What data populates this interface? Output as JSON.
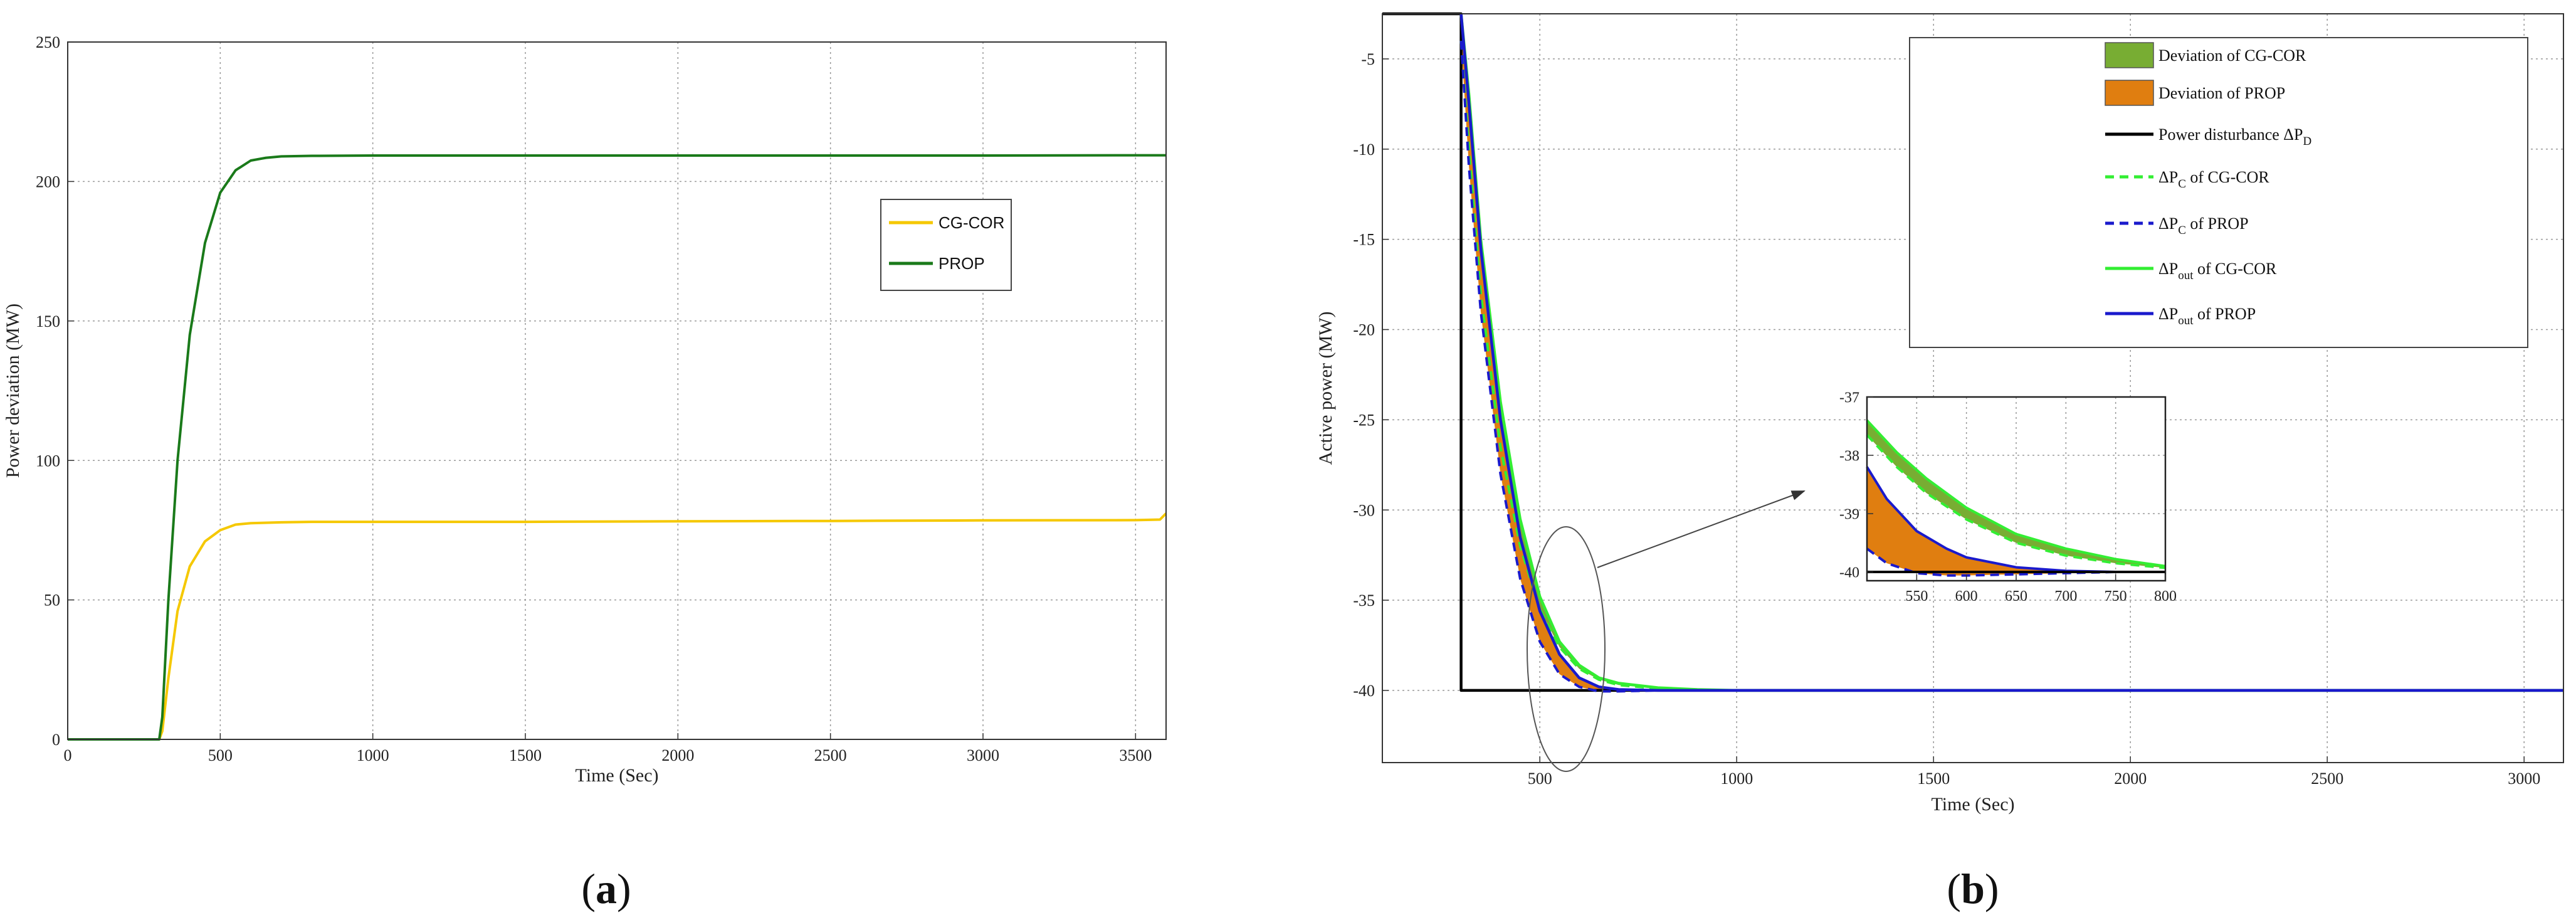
{
  "figure": {
    "panel_a_label": "a",
    "panel_b_label": "b"
  },
  "chart_data": [
    {
      "type": "line",
      "xlabel": "Time (Sec)",
      "ylabel": "Power deviation (MW)",
      "xlim": [
        0,
        3600
      ],
      "ylim": [
        0,
        250
      ],
      "xticks": [
        0,
        500,
        1000,
        1500,
        2000,
        2500,
        3000,
        3500
      ],
      "yticks": [
        0,
        50,
        100,
        150,
        200,
        250
      ],
      "grid": true,
      "legend_position": "right-upper",
      "series": [
        {
          "name": "CG-COR",
          "color": "#f5c800",
          "x": [
            0,
            300,
            310,
            330,
            360,
            400,
            450,
            500,
            550,
            600,
            700,
            800,
            1000,
            1500,
            2000,
            2500,
            3000,
            3500,
            3580,
            3600
          ],
          "y": [
            0,
            0,
            3,
            22,
            46,
            62,
            71,
            75,
            77,
            77.5,
            77.8,
            78,
            78,
            78,
            78.2,
            78.3,
            78.5,
            78.6,
            78.8,
            81
          ]
        },
        {
          "name": "PROP",
          "color": "#1a7a1a",
          "x": [
            0,
            300,
            310,
            330,
            360,
            400,
            450,
            500,
            550,
            600,
            650,
            700,
            800,
            1000,
            1500,
            2000,
            2500,
            3000,
            3500,
            3600
          ],
          "y": [
            0,
            0,
            8,
            50,
            100,
            145,
            178,
            196,
            204,
            207.5,
            208.5,
            209,
            209.2,
            209.3,
            209.3,
            209.3,
            209.3,
            209.3,
            209.4,
            209.4
          ]
        }
      ]
    },
    {
      "type": "area",
      "xlabel": "Time (Sec)",
      "ylabel": "Active power (MW)",
      "xlim": [
        100,
        3100
      ],
      "ylim": [
        -44,
        -2.5
      ],
      "xticks": [
        500,
        1000,
        1500,
        2000,
        2500,
        3000
      ],
      "yticks": [
        -40,
        -35,
        -30,
        -25,
        -20,
        -15,
        -10,
        -5
      ],
      "grid": true,
      "legend_position": "top-right",
      "legend": [
        {
          "kind": "patch",
          "color": "#78ad33",
          "label": "Deviation of CG-COR"
        },
        {
          "kind": "patch",
          "color": "#e07e10",
          "label": "Deviation of PROP"
        },
        {
          "kind": "line-solid",
          "color": "#000000",
          "label": "Power disturbance ΔP",
          "sub": "D"
        },
        {
          "kind": "line-dashed",
          "color": "#33ee33",
          "label": "ΔP",
          "sub": "C",
          "rest": " of CG-COR"
        },
        {
          "kind": "line-dashed",
          "color": "#1a1acc",
          "label": "ΔP",
          "sub": "C",
          "rest": " of PROP"
        },
        {
          "kind": "line-solid",
          "color": "#33ee33",
          "label": "ΔP",
          "sub": "out",
          "rest": " of CG-COR"
        },
        {
          "kind": "line-solid",
          "color": "#1a1acc",
          "label": "ΔP",
          "sub": "out",
          "rest": " of PROP"
        }
      ],
      "series": [
        {
          "name": "Power disturbance ΔPD",
          "color": "#000000",
          "style": "solid",
          "x": [
            100,
            300,
            300,
            3100
          ],
          "y": [
            0,
            0,
            -40,
            -40
          ]
        },
        {
          "name": "ΔPC of CG-COR",
          "color": "#33ee33",
          "style": "dashed",
          "x": [
            300,
            320,
            350,
            400,
            450,
            500,
            550,
            600,
            650,
            700,
            800,
            900,
            1000,
            3100
          ],
          "y": [
            -4,
            -10,
            -18,
            -26.5,
            -32,
            -35.5,
            -37.6,
            -38.8,
            -39.4,
            -39.7,
            -39.9,
            -40,
            -40,
            -40
          ]
        },
        {
          "name": "ΔPC of PROP",
          "color": "#1a1acc",
          "style": "dashed",
          "x": [
            300,
            320,
            350,
            400,
            450,
            500,
            550,
            600,
            650,
            700,
            800,
            1000,
            3100
          ],
          "y": [
            -4,
            -11,
            -19,
            -28,
            -33.8,
            -37.3,
            -39.1,
            -39.8,
            -40.05,
            -40.05,
            -40,
            -40,
            -40
          ]
        },
        {
          "name": "ΔPout of CG-COR",
          "color": "#33ee33",
          "style": "solid",
          "x": [
            300,
            320,
            350,
            400,
            450,
            500,
            550,
            600,
            650,
            700,
            800,
            900,
            1000,
            3100
          ],
          "y": [
            -2,
            -7,
            -15,
            -24,
            -30.5,
            -34.8,
            -37.3,
            -38.6,
            -39.3,
            -39.6,
            -39.85,
            -39.95,
            -40,
            -40
          ]
        },
        {
          "name": "ΔPout of PROP",
          "color": "#1a1acc",
          "style": "solid",
          "x": [
            300,
            320,
            350,
            400,
            450,
            500,
            550,
            600,
            650,
            700,
            800,
            900,
            1000,
            3100
          ],
          "y": [
            -2,
            -7.5,
            -15.5,
            -25,
            -31.5,
            -35.6,
            -38,
            -39.3,
            -39.8,
            -39.95,
            -40,
            -40,
            -40,
            -40
          ]
        }
      ],
      "inset": {
        "xlim": [
          500,
          800
        ],
        "ylim": [
          -40.15,
          -37
        ],
        "xticks": [
          550,
          600,
          650,
          700,
          750,
          800
        ],
        "yticks": [
          -40,
          -39,
          -38,
          -37
        ],
        "series": [
          {
            "name": "CG-COR out",
            "color": "#33ee33",
            "style": "solid",
            "x": [
              500,
              530,
              560,
              600,
              650,
              700,
              750,
              800
            ],
            "y": [
              -37.4,
              -37.95,
              -38.4,
              -38.9,
              -39.35,
              -39.6,
              -39.78,
              -39.9
            ]
          },
          {
            "name": "CG-COR c",
            "color": "#33ee33",
            "style": "dashed",
            "x": [
              500,
              530,
              560,
              600,
              650,
              700,
              750,
              800
            ],
            "y": [
              -37.65,
              -38.2,
              -38.65,
              -39.1,
              -39.5,
              -39.72,
              -39.85,
              -39.93
            ]
          },
          {
            "name": "PROP out",
            "color": "#1a1acc",
            "style": "solid",
            "x": [
              500,
              520,
              550,
              580,
              600,
              650,
              700,
              750,
              800
            ],
            "y": [
              -38.2,
              -38.75,
              -39.3,
              -39.6,
              -39.75,
              -39.92,
              -39.98,
              -40,
              -40
            ]
          },
          {
            "name": "PROP c",
            "color": "#1a1acc",
            "style": "dashed",
            "x": [
              500,
              520,
              550,
              580,
              600,
              650,
              700,
              750,
              800
            ],
            "y": [
              -39.6,
              -39.85,
              -40.02,
              -40.06,
              -40.06,
              -40.04,
              -40.02,
              -40,
              -40
            ]
          },
          {
            "name": "disturbance",
            "color": "#000000",
            "style": "solid",
            "x": [
              500,
              800
            ],
            "y": [
              -40,
              -40
            ]
          }
        ]
      }
    }
  ]
}
